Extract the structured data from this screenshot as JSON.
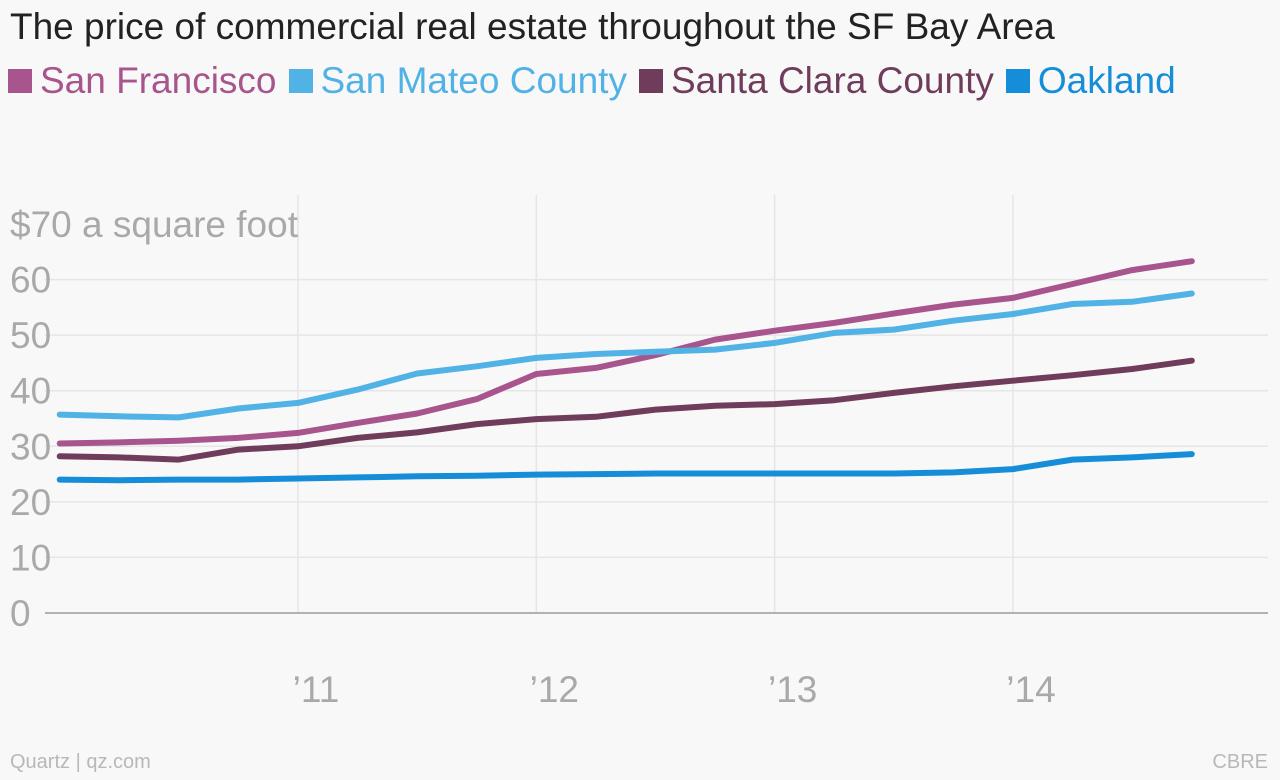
{
  "title": "The price of commercial real estate throughout the SF Bay Area",
  "footer": {
    "left": "Quartz | qz.com",
    "right": "CBRE"
  },
  "chart_data": {
    "type": "line",
    "title": "The price of commercial real estate throughout the SF Bay Area",
    "ylabel": "$70 a square foot",
    "yticks": [
      {
        "value": 0,
        "label": "0"
      },
      {
        "value": 10,
        "label": "10"
      },
      {
        "value": 20,
        "label": "20"
      },
      {
        "value": 30,
        "label": "30"
      },
      {
        "value": 40,
        "label": "40"
      },
      {
        "value": 50,
        "label": "50"
      },
      {
        "value": 60,
        "label": "60"
      },
      {
        "value": 70,
        "label": "$70 a square foot"
      }
    ],
    "ylim": [
      0,
      70
    ],
    "xticks": [
      {
        "value": 2011,
        "label": "’11"
      },
      {
        "value": 2012,
        "label": "’12"
      },
      {
        "value": 2013,
        "label": "’13"
      },
      {
        "value": 2014,
        "label": "’14"
      }
    ],
    "xlim": [
      2009.9,
      2014.95
    ],
    "x": [
      2010.0,
      2010.25,
      2010.5,
      2010.75,
      2011.0,
      2011.25,
      2011.5,
      2011.75,
      2012.0,
      2012.25,
      2012.5,
      2012.75,
      2013.0,
      2013.25,
      2013.5,
      2013.75,
      2014.0,
      2014.25,
      2014.5,
      2014.75
    ],
    "grid": true,
    "legend_position": "top-left",
    "series": [
      {
        "name": "San Francisco",
        "color": "#a8558e",
        "values": [
          30.5,
          30.7,
          31.0,
          31.5,
          32.4,
          34.2,
          35.9,
          38.5,
          43.0,
          44.1,
          46.4,
          49.2,
          50.8,
          52.2,
          53.9,
          55.5,
          56.7,
          59.2,
          61.7,
          63.3
        ]
      },
      {
        "name": "San Mateo County",
        "color": "#51b2e5",
        "values": [
          35.7,
          35.4,
          35.2,
          36.8,
          37.8,
          40.2,
          43.1,
          44.4,
          45.9,
          46.6,
          47.0,
          47.4,
          48.6,
          50.4,
          51.0,
          52.6,
          53.8,
          55.6,
          56.0,
          57.5
        ]
      },
      {
        "name": "Santa Clara County",
        "color": "#703c5c",
        "values": [
          28.2,
          28.0,
          27.6,
          29.4,
          30.0,
          31.5,
          32.5,
          34.0,
          34.9,
          35.3,
          36.6,
          37.3,
          37.6,
          38.3,
          39.6,
          40.8,
          41.8,
          42.8,
          43.9,
          45.4
        ]
      },
      {
        "name": "Oakland",
        "color": "#168dd9",
        "values": [
          24.0,
          23.9,
          24.0,
          24.0,
          24.2,
          24.4,
          24.6,
          24.7,
          24.9,
          25.0,
          25.1,
          25.1,
          25.1,
          25.1,
          25.1,
          25.3,
          25.9,
          27.6,
          28.0,
          28.6
        ]
      }
    ]
  }
}
